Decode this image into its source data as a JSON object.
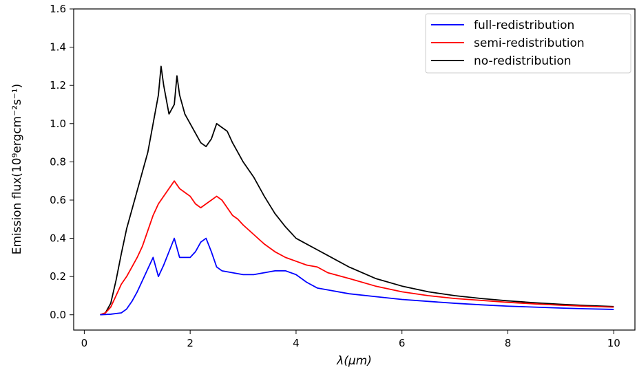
{
  "chart_data": {
    "type": "line",
    "title": "",
    "xlabel": "λ(μm)",
    "ylabel": "Emission flux(10⁹ergcm⁻²s⁻¹)",
    "xlim": [
      -0.2,
      10.4
    ],
    "ylim": [
      -0.08,
      1.6
    ],
    "xticks": [
      0,
      2,
      4,
      6,
      8,
      10
    ],
    "yticks": [
      0.0,
      0.2,
      0.4,
      0.6,
      0.8,
      1.0,
      1.2,
      1.4,
      1.6
    ],
    "xtick_labels": [
      "0",
      "2",
      "4",
      "6",
      "8",
      "10"
    ],
    "ytick_labels": [
      "0.0",
      "0.2",
      "0.4",
      "0.6",
      "0.8",
      "1.0",
      "1.2",
      "1.4",
      "1.6"
    ],
    "grid": false,
    "legend_position": "top-right",
    "series": [
      {
        "name": "full-redistribution",
        "color": "#0000ff",
        "x": [
          0.3,
          0.5,
          0.7,
          0.8,
          0.9,
          1.0,
          1.1,
          1.2,
          1.3,
          1.4,
          1.5,
          1.6,
          1.7,
          1.8,
          1.9,
          2.0,
          2.1,
          2.2,
          2.3,
          2.4,
          2.5,
          2.6,
          2.8,
          3.0,
          3.2,
          3.4,
          3.6,
          3.8,
          4.0,
          4.2,
          4.4,
          4.6,
          5.0,
          5.5,
          6.0,
          6.5,
          7.0,
          7.5,
          8.0,
          8.5,
          9.0,
          9.5,
          10.0
        ],
        "y": [
          0.0,
          0.003,
          0.01,
          0.03,
          0.07,
          0.12,
          0.18,
          0.24,
          0.3,
          0.2,
          0.26,
          0.33,
          0.4,
          0.3,
          0.3,
          0.3,
          0.33,
          0.38,
          0.4,
          0.33,
          0.25,
          0.23,
          0.22,
          0.21,
          0.21,
          0.22,
          0.23,
          0.23,
          0.21,
          0.17,
          0.14,
          0.13,
          0.11,
          0.095,
          0.08,
          0.07,
          0.06,
          0.052,
          0.045,
          0.04,
          0.035,
          0.031,
          0.028
        ]
      },
      {
        "name": "semi-redistribution",
        "color": "#ff0000",
        "x": [
          0.3,
          0.4,
          0.5,
          0.6,
          0.7,
          0.8,
          0.9,
          1.0,
          1.1,
          1.2,
          1.3,
          1.4,
          1.5,
          1.6,
          1.7,
          1.8,
          1.9,
          2.0,
          2.1,
          2.2,
          2.3,
          2.4,
          2.5,
          2.6,
          2.7,
          2.8,
          2.9,
          3.0,
          3.2,
          3.4,
          3.6,
          3.8,
          4.0,
          4.2,
          4.4,
          4.6,
          5.0,
          5.5,
          6.0,
          6.5,
          7.0,
          7.5,
          8.0,
          8.5,
          9.0,
          9.5,
          10.0
        ],
        "y": [
          0.0,
          0.01,
          0.04,
          0.1,
          0.16,
          0.2,
          0.25,
          0.3,
          0.36,
          0.44,
          0.52,
          0.58,
          0.62,
          0.66,
          0.7,
          0.66,
          0.64,
          0.62,
          0.58,
          0.56,
          0.58,
          0.6,
          0.62,
          0.6,
          0.56,
          0.52,
          0.5,
          0.47,
          0.42,
          0.37,
          0.33,
          0.3,
          0.28,
          0.26,
          0.25,
          0.22,
          0.19,
          0.15,
          0.12,
          0.1,
          0.085,
          0.075,
          0.065,
          0.057,
          0.05,
          0.044,
          0.04
        ]
      },
      {
        "name": "no-redistribution",
        "color": "#000000",
        "x": [
          0.3,
          0.4,
          0.5,
          0.6,
          0.7,
          0.8,
          0.9,
          1.0,
          1.1,
          1.2,
          1.3,
          1.4,
          1.45,
          1.5,
          1.6,
          1.7,
          1.75,
          1.8,
          1.9,
          2.0,
          2.1,
          2.2,
          2.3,
          2.4,
          2.5,
          2.6,
          2.7,
          2.8,
          2.9,
          3.0,
          3.2,
          3.4,
          3.6,
          3.8,
          4.0,
          4.2,
          4.4,
          4.6,
          4.8,
          5.0,
          5.5,
          6.0,
          6.5,
          7.0,
          7.5,
          8.0,
          8.5,
          9.0,
          9.5,
          10.0
        ],
        "y": [
          0.0,
          0.01,
          0.06,
          0.18,
          0.32,
          0.45,
          0.55,
          0.65,
          0.75,
          0.85,
          1.0,
          1.15,
          1.3,
          1.2,
          1.05,
          1.1,
          1.25,
          1.15,
          1.05,
          1.0,
          0.95,
          0.9,
          0.88,
          0.92,
          1.0,
          0.98,
          0.96,
          0.9,
          0.85,
          0.8,
          0.72,
          0.62,
          0.53,
          0.46,
          0.4,
          0.37,
          0.34,
          0.31,
          0.28,
          0.25,
          0.19,
          0.15,
          0.12,
          0.1,
          0.085,
          0.073,
          0.063,
          0.055,
          0.048,
          0.043
        ]
      }
    ]
  }
}
